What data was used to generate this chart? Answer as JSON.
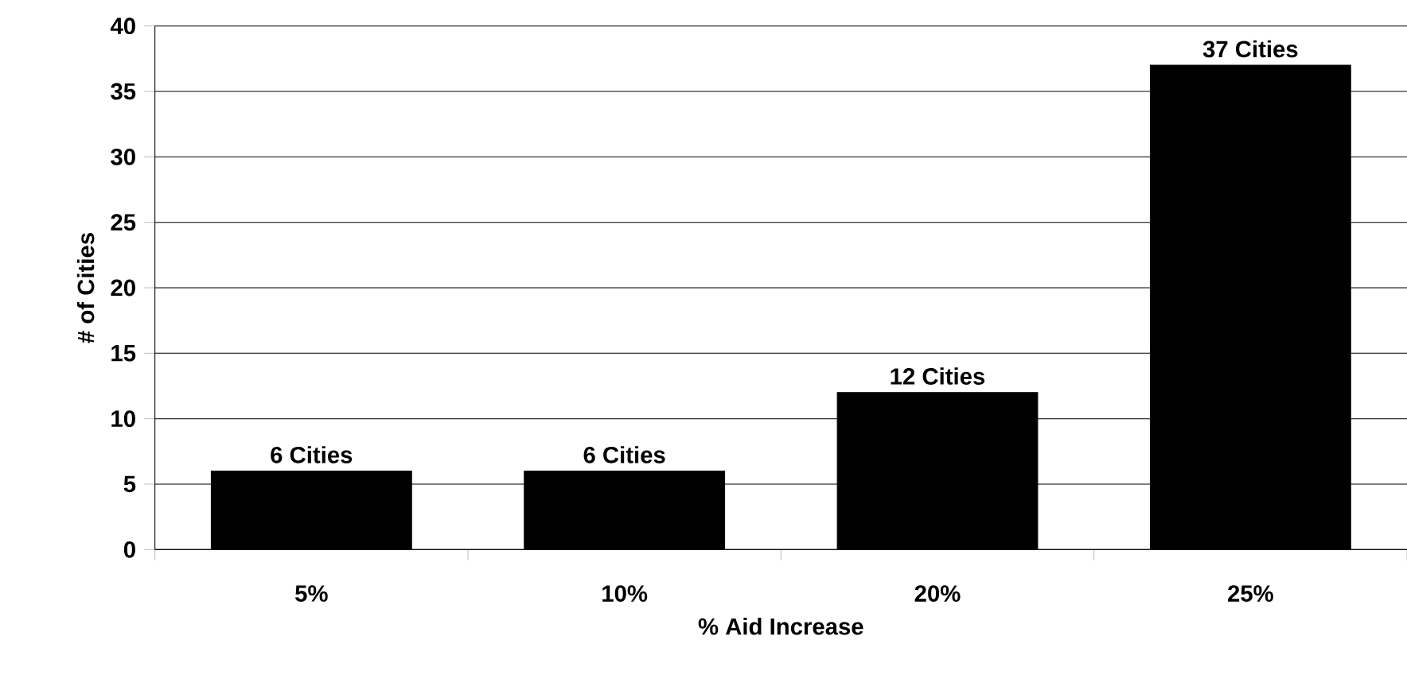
{
  "chart_data": {
    "type": "bar",
    "xlabel": "% Aid Increase",
    "ylabel": "# of Cities",
    "categories": [
      "5%",
      "10%",
      "20%",
      "25%"
    ],
    "values": [
      6,
      6,
      12,
      37
    ],
    "value_labels": [
      "6 Cities",
      "6 Cities",
      "12 Cities",
      "37 Cities"
    ],
    "color": "#000000",
    "ylim": [
      0,
      40
    ],
    "yticks": [
      0,
      5,
      10,
      15,
      20,
      25,
      30,
      35,
      40
    ],
    "grid": "y"
  }
}
